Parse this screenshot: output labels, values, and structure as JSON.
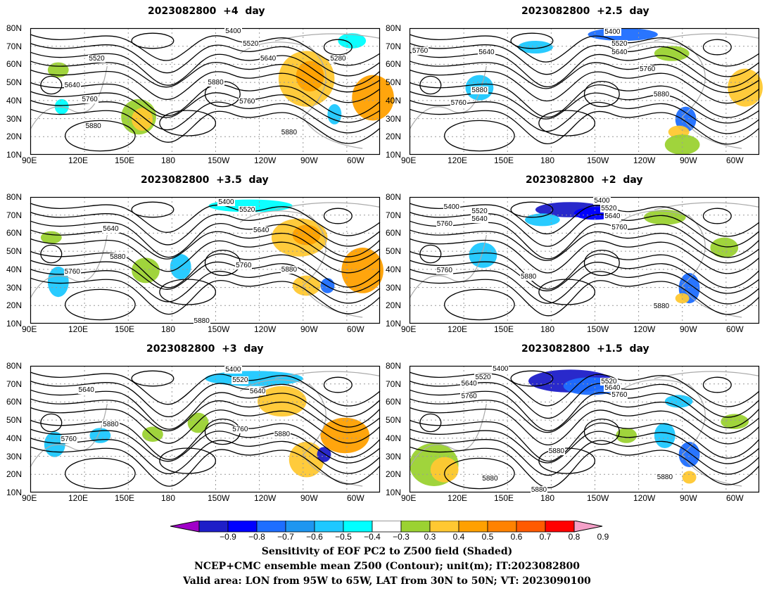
{
  "panels": [
    {
      "title": "2023082800  +4  day",
      "x_ticks": [
        "90E",
        "120E",
        "150E",
        "180",
        "150W",
        "120W",
        "90W",
        "60W"
      ],
      "y_ticks": [
        "80N",
        "70N",
        "60N",
        "50N",
        "40N",
        "30N",
        "20N",
        "10N"
      ],
      "contour_labels": [
        "5400",
        "5520",
        "5640",
        "5280",
        "5520",
        "5640",
        "5880",
        "5760",
        "5760",
        "5880",
        "5880"
      ]
    },
    {
      "title": "2023082800  +2.5  day",
      "x_ticks": [
        "90E",
        "120E",
        "150E",
        "180",
        "150W",
        "120W",
        "90W",
        "60W"
      ],
      "y_ticks": [
        "80N",
        "70N",
        "60N",
        "50N",
        "40N",
        "30N",
        "20N",
        "10N"
      ],
      "contour_labels": [
        "5400",
        "5520",
        "5640",
        "5760",
        "5640",
        "5880",
        "5760",
        "5760",
        "5880"
      ]
    },
    {
      "title": "2023082800  +3.5  day",
      "x_ticks": [
        "90E",
        "120E",
        "150E",
        "180",
        "150W",
        "120W",
        "90W",
        "60W"
      ],
      "y_ticks": [
        "80N",
        "70N",
        "60N",
        "50N",
        "40N",
        "30N",
        "20N",
        "10N"
      ],
      "contour_labels": [
        "5400",
        "5520",
        "5640",
        "5640",
        "5880",
        "5760",
        "5760",
        "5880",
        "5880"
      ]
    },
    {
      "title": "2023082800  +2  day",
      "x_ticks": [
        "90E",
        "120E",
        "150E",
        "180",
        "150W",
        "120W",
        "90W",
        "60W"
      ],
      "y_ticks": [
        "80N",
        "70N",
        "60N",
        "50N",
        "40N",
        "30N",
        "20N",
        "10N"
      ],
      "contour_labels": [
        "5400",
        "5400",
        "5520",
        "5640",
        "5520",
        "5640",
        "5760",
        "5760",
        "5760",
        "5880",
        "5880"
      ]
    },
    {
      "title": "2023082800  +3  day",
      "x_ticks": [
        "90E",
        "120E",
        "150E",
        "180",
        "150W",
        "120W",
        "90W",
        "60W"
      ],
      "y_ticks": [
        "80N",
        "70N",
        "60N",
        "50N",
        "40N",
        "30N",
        "20N",
        "10N"
      ],
      "contour_labels": [
        "5400",
        "5520",
        "5640",
        "5640",
        "5880",
        "5760",
        "5760",
        "5880"
      ]
    },
    {
      "title": "2023082800  +1.5  day",
      "x_ticks": [
        "90E",
        "120E",
        "150E",
        "180",
        "150W",
        "120W",
        "90W",
        "60W"
      ],
      "y_ticks": [
        "80N",
        "70N",
        "60N",
        "50N",
        "40N",
        "30N",
        "20N",
        "10N"
      ],
      "contour_labels": [
        "5400",
        "5520",
        "5640",
        "5520",
        "5640",
        "5760",
        "5760",
        "5880",
        "5880",
        "5880",
        "5880"
      ]
    }
  ],
  "colorbar": {
    "labels": [
      "−0.9",
      "−0.8",
      "−0.7",
      "−0.6",
      "−0.5",
      "−0.4",
      "−0.3",
      "0.3",
      "0.4",
      "0.5",
      "0.6",
      "0.7",
      "0.8",
      "0.9"
    ],
    "colors": [
      "#a000c8",
      "#1e1ec8",
      "#0000ff",
      "#1e6eff",
      "#1e96f0",
      "#1ec8ff",
      "#00ffff",
      "#ffffff",
      "#9bd232",
      "#ffc832",
      "#ffa000",
      "#ff8200",
      "#ff5a00",
      "#ff0000",
      "#f5a0c8"
    ]
  },
  "captions": [
    "Sensitivity of EOF PC2 to Z500 field (Shaded)",
    "NCEP+CMC ensemble mean Z500 (Contour); unit(m); IT:2023082800",
    "Valid area: LON from 95W to 65W, LAT from 30N to 50N; VT: 2023090100"
  ]
}
